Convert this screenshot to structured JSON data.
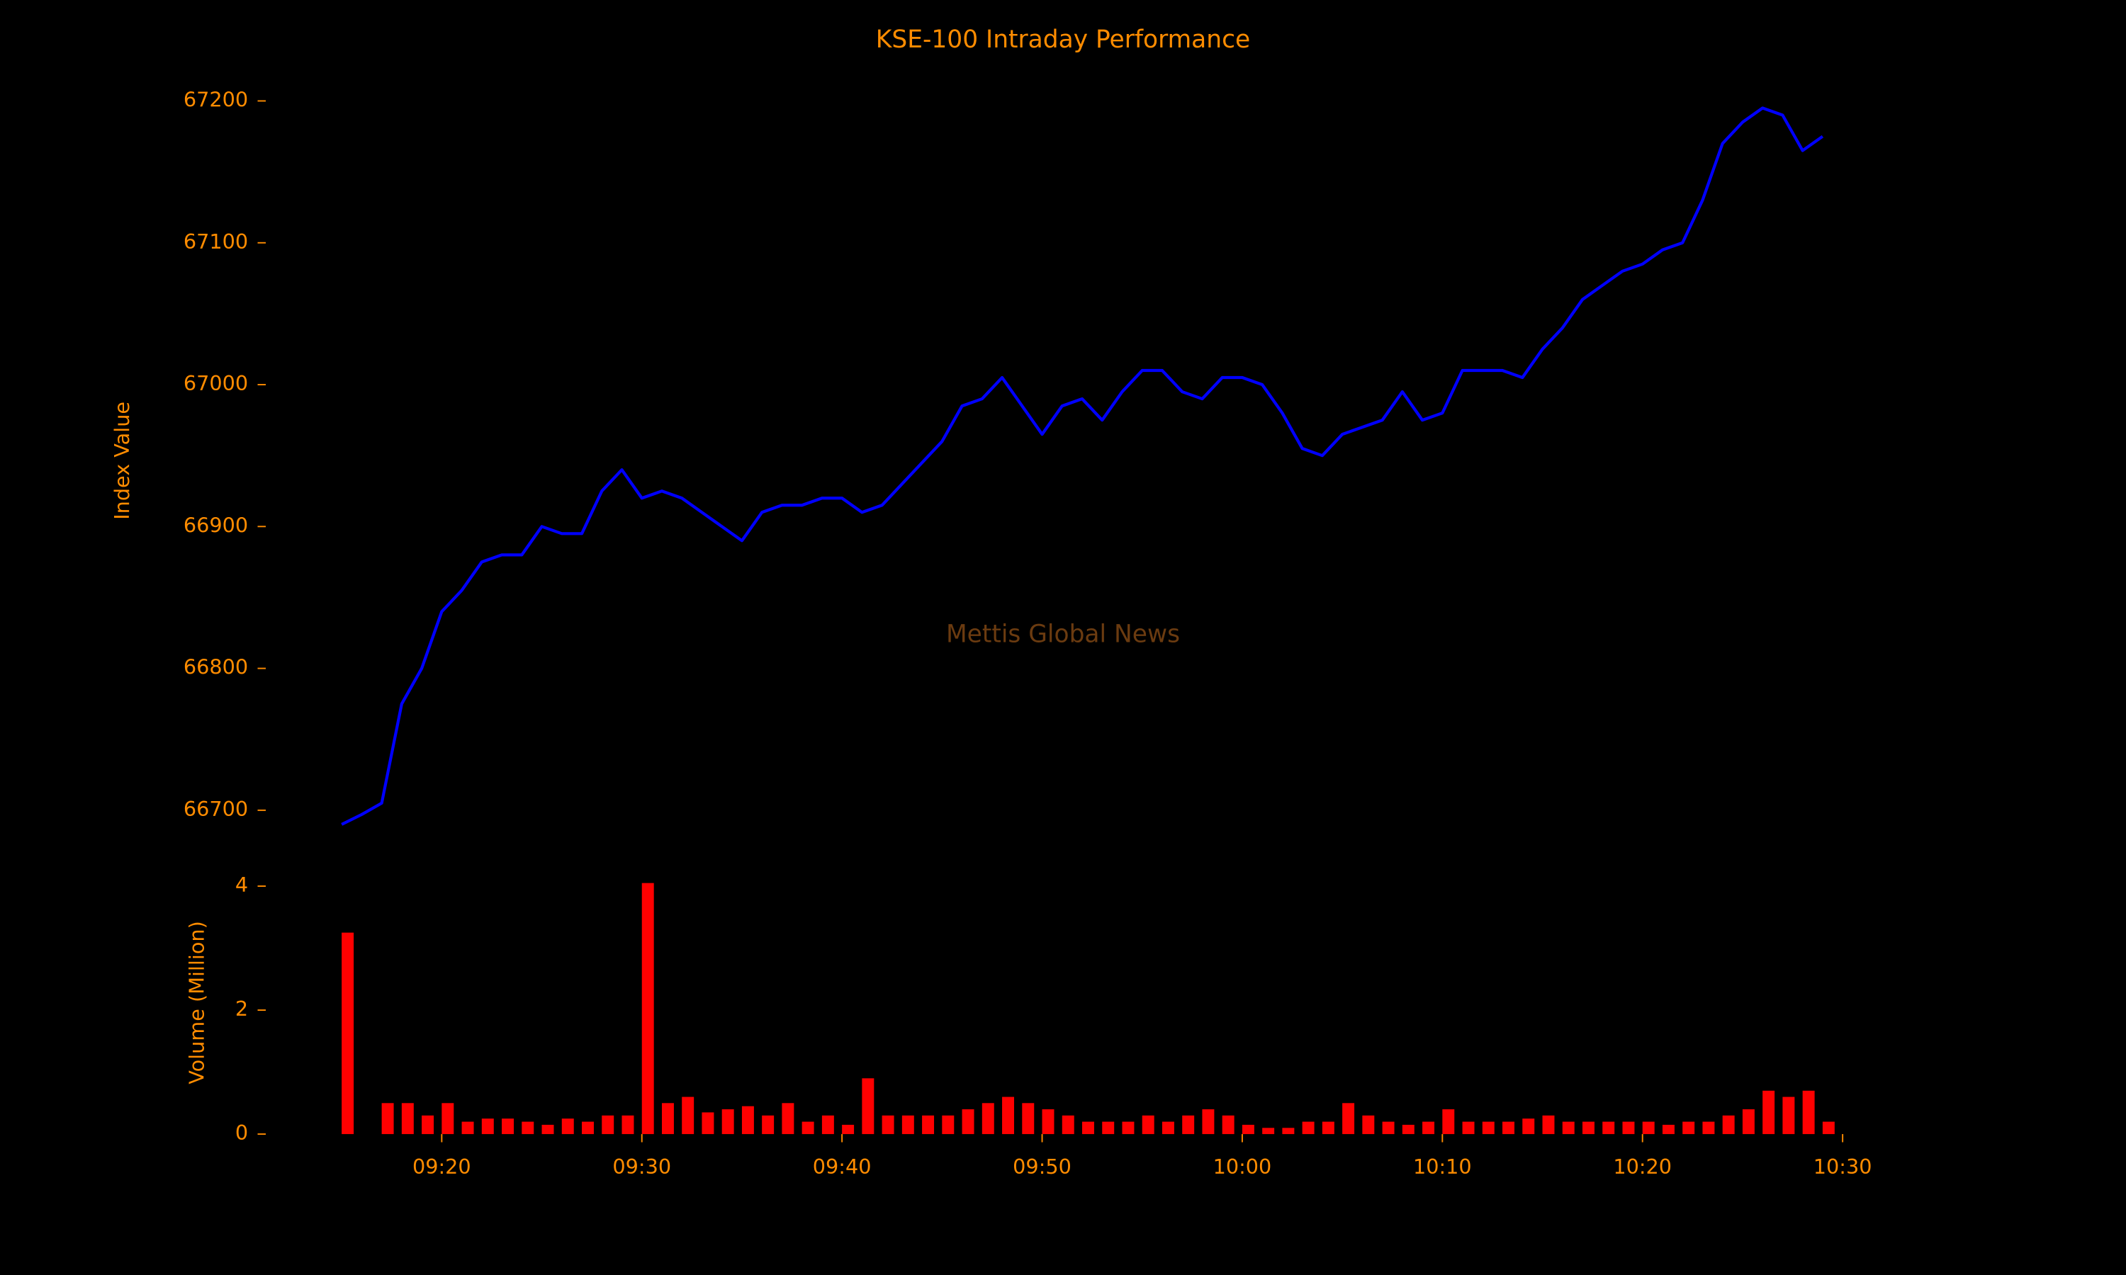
{
  "chart_data": [
    {
      "type": "line",
      "title": "KSE-100 Intraday Performance",
      "ylabel": "Index Value",
      "watermark": "Mettis Global News",
      "color": "#0000ff",
      "x": [
        "09:15",
        "09:16",
        "09:17",
        "09:18",
        "09:19",
        "09:20",
        "09:21",
        "09:22",
        "09:23",
        "09:24",
        "09:25",
        "09:26",
        "09:27",
        "09:28",
        "09:29",
        "09:30",
        "09:31",
        "09:32",
        "09:33",
        "09:34",
        "09:35",
        "09:36",
        "09:37",
        "09:38",
        "09:39",
        "09:40",
        "09:41",
        "09:42",
        "09:43",
        "09:44",
        "09:45",
        "09:46",
        "09:47",
        "09:48",
        "09:49",
        "09:50",
        "09:51",
        "09:52",
        "09:53",
        "09:54",
        "09:55",
        "09:56",
        "09:57",
        "09:58",
        "09:59",
        "10:00",
        "10:01",
        "10:02",
        "10:03",
        "10:04",
        "10:05",
        "10:06",
        "10:07",
        "10:08",
        "10:09",
        "10:10",
        "10:11",
        "10:12",
        "10:13",
        "10:14",
        "10:15",
        "10:16",
        "10:17",
        "10:18",
        "10:19",
        "10:20",
        "10:21",
        "10:22",
        "10:23",
        "10:24",
        "10:25",
        "10:26",
        "10:27",
        "10:28",
        "10:29"
      ],
      "values": [
        66690,
        66697,
        66705,
        66775,
        66800,
        66840,
        66855,
        66875,
        66880,
        66880,
        66900,
        66895,
        66895,
        66925,
        66940,
        66920,
        66925,
        66920,
        66910,
        66900,
        66890,
        66910,
        66915,
        66915,
        66920,
        66920,
        66910,
        66915,
        66930,
        66945,
        66960,
        66985,
        66990,
        67005,
        66985,
        66965,
        66985,
        66990,
        66975,
        66995,
        67010,
        67010,
        66995,
        66990,
        67005,
        67005,
        67000,
        66980,
        66955,
        66950,
        66965,
        66970,
        66975,
        66995,
        66975,
        66980,
        67010,
        67010,
        67010,
        67005,
        67025,
        67040,
        67060,
        67070,
        67080,
        67085,
        67095,
        67100,
        67130,
        67170,
        67185,
        67195,
        67190,
        67165,
        67175
      ],
      "xlim": [
        "09:15",
        "10:30"
      ],
      "ylim": [
        66690,
        67210
      ],
      "yticks": [
        66700,
        66800,
        66900,
        67000,
        67100,
        67200
      ]
    },
    {
      "type": "bar",
      "ylabel": "Volume (Million)",
      "color": "#ff0000",
      "x": [
        "09:15",
        "09:16",
        "09:17",
        "09:18",
        "09:19",
        "09:20",
        "09:21",
        "09:22",
        "09:23",
        "09:24",
        "09:25",
        "09:26",
        "09:27",
        "09:28",
        "09:29",
        "09:30",
        "09:31",
        "09:32",
        "09:33",
        "09:34",
        "09:35",
        "09:36",
        "09:37",
        "09:38",
        "09:39",
        "09:40",
        "09:41",
        "09:42",
        "09:43",
        "09:44",
        "09:45",
        "09:46",
        "09:47",
        "09:48",
        "09:49",
        "09:50",
        "09:51",
        "09:52",
        "09:53",
        "09:54",
        "09:55",
        "09:56",
        "09:57",
        "09:58",
        "09:59",
        "10:00",
        "10:01",
        "10:02",
        "10:03",
        "10:04",
        "10:05",
        "10:06",
        "10:07",
        "10:08",
        "10:09",
        "10:10",
        "10:11",
        "10:12",
        "10:13",
        "10:14",
        "10:15",
        "10:16",
        "10:17",
        "10:18",
        "10:19",
        "10:20",
        "10:21",
        "10:22",
        "10:23",
        "10:24",
        "10:25",
        "10:26",
        "10:27",
        "10:28",
        "10:29"
      ],
      "values": [
        3.25,
        0,
        0.5,
        0.5,
        0.3,
        0.5,
        0.2,
        0.25,
        0.25,
        0.2,
        0.15,
        0.25,
        0.2,
        0.3,
        0.3,
        4.05,
        0.5,
        0.6,
        0.35,
        0.4,
        0.45,
        0.3,
        0.5,
        0.2,
        0.3,
        0.15,
        0.9,
        0.3,
        0.3,
        0.3,
        0.3,
        0.4,
        0.5,
        0.6,
        0.5,
        0.4,
        0.3,
        0.2,
        0.2,
        0.2,
        0.3,
        0.2,
        0.3,
        0.4,
        0.3,
        0.15,
        0.1,
        0.1,
        0.2,
        0.2,
        0.5,
        0.3,
        0.2,
        0.15,
        0.2,
        0.4,
        0.2,
        0.2,
        0.2,
        0.25,
        0.3,
        0.2,
        0.2,
        0.2,
        0.2,
        0.2,
        0.15,
        0.2,
        0.2,
        0.3,
        0.4,
        0.7,
        0.6,
        0.7,
        0.2
      ],
      "xlim": [
        "09:15",
        "10:30"
      ],
      "xticks": [
        "09:20",
        "09:30",
        "09:40",
        "09:50",
        "10:00",
        "10:10",
        "10:20",
        "10:30"
      ],
      "ylim": [
        0,
        4.1
      ],
      "yticks": [
        0,
        2,
        4
      ]
    }
  ]
}
